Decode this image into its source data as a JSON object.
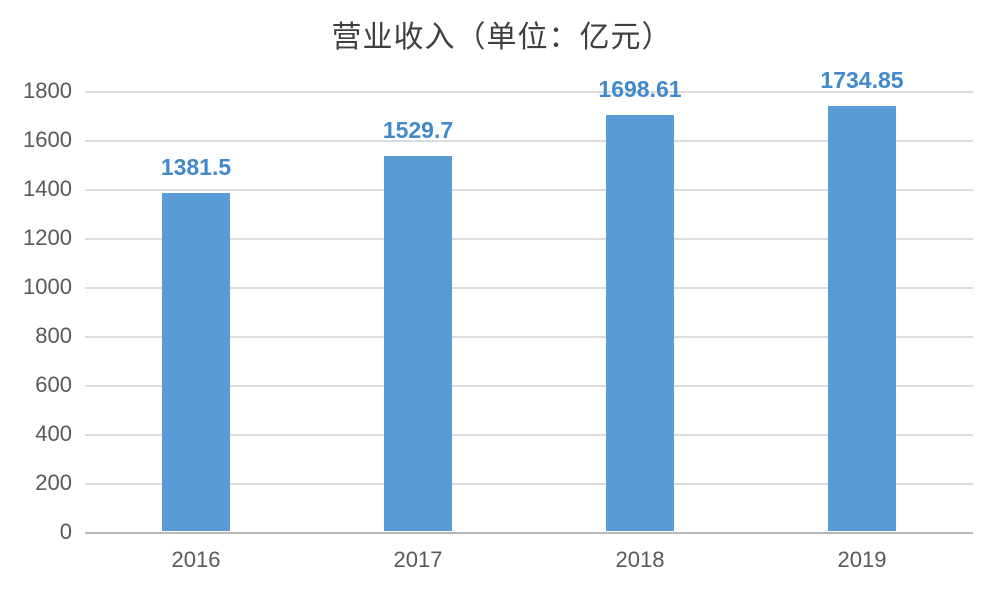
{
  "chart_data": {
    "type": "bar",
    "title": "营业收入（单位：亿元）",
    "categories": [
      "2016",
      "2017",
      "2018",
      "2019"
    ],
    "values": [
      1381.5,
      1529.7,
      1698.61,
      1734.85
    ],
    "data_labels": [
      "1381.5",
      "1529.7",
      "1698.61",
      "1734.85"
    ],
    "series_name": "营业收入",
    "xlabel": "",
    "ylabel": "",
    "yticks": [
      0,
      200,
      400,
      600,
      800,
      1000,
      1200,
      1400,
      1600,
      1800
    ],
    "ylim": [
      0,
      1800
    ],
    "grid": true,
    "legend": "none",
    "colors": {
      "bar": "#5b9bd5",
      "data_label": "#4189cb",
      "axis_text": "#595959",
      "title_text": "#3f3f3f",
      "gridline": "#dcdcdc",
      "axis_line": "#b7b7b7",
      "background": "#ffffff"
    }
  }
}
